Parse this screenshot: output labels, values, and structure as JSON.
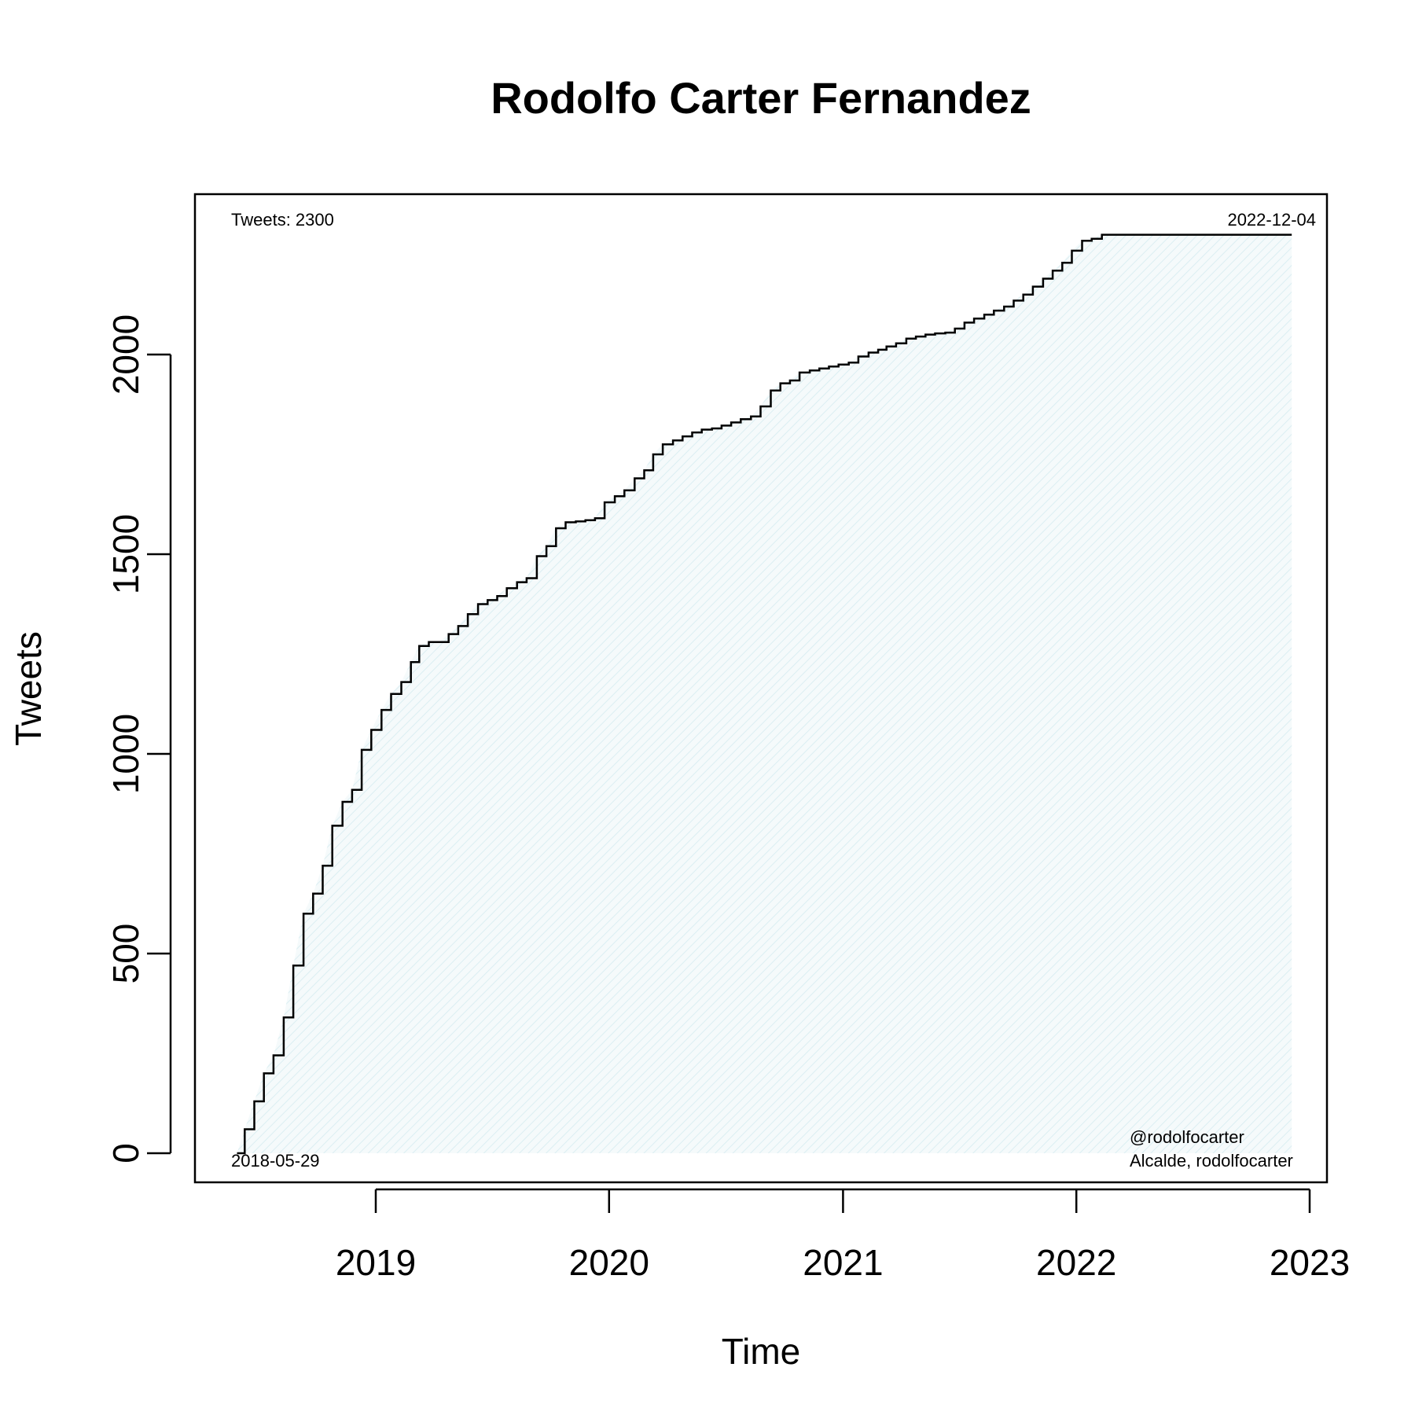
{
  "chart_data": {
    "type": "area",
    "title": "Rodolfo Carter Fernandez",
    "xlabel": "Time",
    "ylabel": "Tweets",
    "xlim": [
      "2018-05-29",
      "2022-12-04"
    ],
    "ylim": [
      0,
      2300
    ],
    "x_ticks": [
      "2019",
      "2020",
      "2021",
      "2022",
      "2023"
    ],
    "y_ticks": [
      "0",
      "500",
      "1000",
      "1500",
      "2000"
    ],
    "grid": false,
    "annotations": {
      "tweets_count": "Tweets: 2300",
      "start_date": "2018-05-29",
      "end_date": "2022-12-04",
      "handle": "@rodolfocarter",
      "description": "Alcalde, rodolfocarter"
    },
    "fill_color": "#e8f3f6",
    "line_color": "#000000",
    "series": [
      {
        "x": [
          "2018-05-29",
          "2018-06-10",
          "2018-06-25",
          "2018-07-10",
          "2018-07-25",
          "2018-08-10",
          "2018-08-25",
          "2018-09-10",
          "2018-09-25",
          "2018-10-10",
          "2018-10-25",
          "2018-11-10",
          "2018-11-25",
          "2018-12-10",
          "2018-12-25",
          "2019-01-10",
          "2019-01-25",
          "2019-02-10",
          "2019-02-25",
          "2019-03-10",
          "2019-03-25",
          "2019-04-10",
          "2019-04-25",
          "2019-05-10",
          "2019-05-25",
          "2019-06-10",
          "2019-06-25",
          "2019-07-10",
          "2019-07-25",
          "2019-08-10",
          "2019-08-25",
          "2019-09-10",
          "2019-09-25",
          "2019-10-10",
          "2019-10-25",
          "2019-11-10",
          "2019-11-25",
          "2019-12-10",
          "2019-12-25",
          "2020-01-10",
          "2020-01-25",
          "2020-02-10",
          "2020-02-25",
          "2020-03-10",
          "2020-03-25",
          "2020-04-10",
          "2020-04-25",
          "2020-05-10",
          "2020-05-25",
          "2020-06-10",
          "2020-06-25",
          "2020-07-10",
          "2020-07-25",
          "2020-08-10",
          "2020-08-25",
          "2020-09-10",
          "2020-09-25",
          "2020-10-10",
          "2020-10-25",
          "2020-11-10",
          "2020-11-25",
          "2020-12-10",
          "2020-12-25",
          "2021-01-10",
          "2021-01-25",
          "2021-02-10",
          "2021-02-25",
          "2021-03-10",
          "2021-03-25",
          "2021-04-10",
          "2021-04-25",
          "2021-05-10",
          "2021-05-25",
          "2021-06-10",
          "2021-06-25",
          "2021-07-10",
          "2021-07-25",
          "2021-08-10",
          "2021-08-25",
          "2021-09-10",
          "2021-09-25",
          "2021-10-10",
          "2021-10-25",
          "2021-11-10",
          "2021-11-25",
          "2021-12-10",
          "2021-12-25",
          "2022-01-10",
          "2022-01-25",
          "2022-02-10",
          "2022-02-25",
          "2022-03-10",
          "2022-03-25",
          "2022-04-10",
          "2022-04-25",
          "2022-05-10",
          "2022-05-25",
          "2022-06-10",
          "2022-06-25",
          "2022-07-10",
          "2022-07-25",
          "2022-08-10",
          "2022-08-25",
          "2022-09-10",
          "2022-09-25",
          "2022-10-10",
          "2022-10-25",
          "2022-11-10",
          "2022-11-25",
          "2022-12-04"
        ],
        "y": [
          0,
          60,
          130,
          200,
          245,
          340,
          470,
          600,
          650,
          720,
          820,
          880,
          910,
          1010,
          1060,
          1110,
          1150,
          1180,
          1230,
          1270,
          1280,
          1280,
          1300,
          1320,
          1350,
          1375,
          1385,
          1395,
          1415,
          1430,
          1440,
          1495,
          1520,
          1565,
          1580,
          1582,
          1585,
          1590,
          1630,
          1645,
          1660,
          1690,
          1710,
          1750,
          1775,
          1785,
          1795,
          1805,
          1812,
          1815,
          1822,
          1830,
          1838,
          1845,
          1870,
          1910,
          1928,
          1935,
          1955,
          1960,
          1965,
          1970,
          1975,
          1980,
          1995,
          2005,
          2012,
          2020,
          2028,
          2040,
          2045,
          2050,
          2053,
          2055,
          2065,
          2080,
          2090,
          2100,
          2110,
          2120,
          2135,
          2150,
          2170,
          2190,
          2210,
          2230,
          2260,
          2285,
          2290,
          2300,
          2300,
          2300,
          2300,
          2300,
          2300,
          2300,
          2300,
          2300,
          2300,
          2300,
          2300,
          2300,
          2300,
          2300,
          2300,
          2300,
          2300,
          2300,
          2300,
          2300
        ]
      }
    ]
  }
}
